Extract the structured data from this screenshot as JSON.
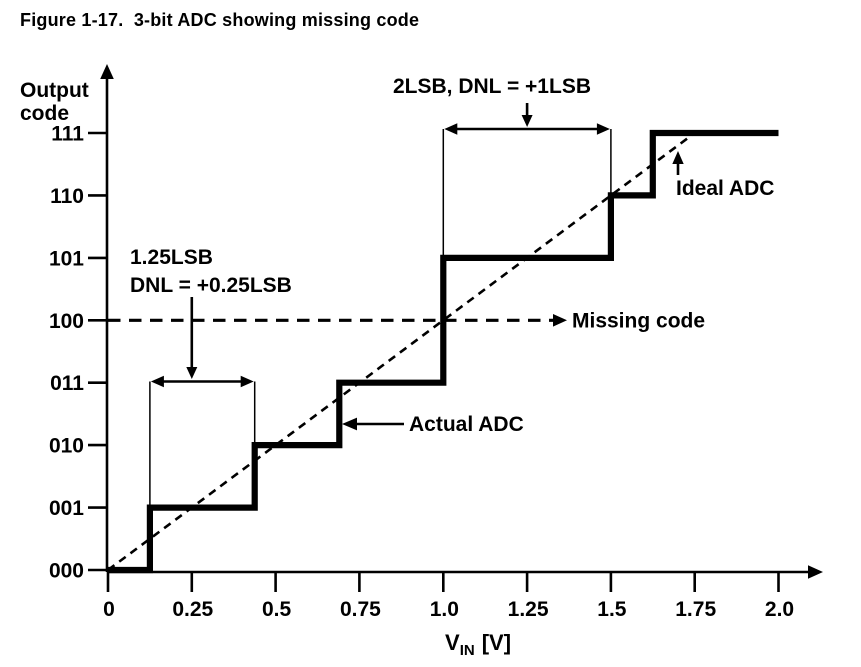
{
  "figure": {
    "caption": "Figure 1-17.  3-bit ADC showing missing code"
  },
  "chart_data": {
    "type": "line",
    "subtype": "adc-transfer-staircase",
    "title": "Figure 1-17. 3-bit ADC showing missing code",
    "xlabel": {
      "text": "VIN [V]",
      "base": "V",
      "subscript": "IN",
      "unit": "[V]"
    },
    "ylabel": {
      "line1": "Output",
      "line2": "code"
    },
    "xlim": [
      0,
      2.0
    ],
    "ylim_codes": [
      0,
      7
    ],
    "grid": false,
    "legend": "none",
    "x_ticks": {
      "values": [
        0,
        0.25,
        0.5,
        0.75,
        1.0,
        1.25,
        1.5,
        1.75,
        2.0
      ],
      "labels": [
        "0",
        "0.25",
        "0.5",
        "0.75",
        "1.0",
        "1.25",
        "1.5",
        "1.75",
        "2.0"
      ]
    },
    "y_ticks": {
      "values": [
        0,
        1,
        2,
        3,
        4,
        5,
        6,
        7
      ],
      "labels": [
        "000",
        "001",
        "010",
        "011",
        "100",
        "101",
        "110",
        "111"
      ]
    },
    "series": [
      {
        "name": "Actual ADC",
        "style": "bold-solid-step",
        "points_v_code": [
          [
            0,
            0
          ],
          [
            0.125,
            0
          ],
          [
            0.125,
            1
          ],
          [
            0.4375,
            1
          ],
          [
            0.4375,
            2
          ],
          [
            0.69,
            2
          ],
          [
            0.69,
            3
          ],
          [
            1.0,
            3
          ],
          [
            1.0,
            5
          ],
          [
            1.5,
            5
          ],
          [
            1.5,
            6
          ],
          [
            1.625,
            6
          ],
          [
            1.625,
            7
          ],
          [
            2.0,
            7
          ]
        ]
      },
      {
        "name": "Ideal ADC",
        "style": "dashed-line",
        "points_v_code": [
          [
            0,
            0
          ],
          [
            1.75,
            7
          ]
        ]
      }
    ],
    "missing_code": {
      "label": "Missing code",
      "code_level": 4,
      "code_label": "100"
    },
    "annotations": [
      {
        "id": "dnl-2lsb",
        "text": "2LSB, DNL = +1LSB",
        "span_volts": [
          1.0,
          1.5
        ],
        "pointer_volt": 1.25,
        "bracket_codes": [
          5,
          6
        ]
      },
      {
        "id": "dnl-125lsb",
        "text_lines": [
          "1.25LSB",
          "DNL = +0.25LSB"
        ],
        "span_volts": [
          0.125,
          0.4375
        ],
        "pointer_volt": 0.25,
        "bracket_codes": [
          1,
          2
        ]
      },
      {
        "id": "ideal-adc",
        "text": "Ideal ADC"
      },
      {
        "id": "actual-adc",
        "text": "Actual ADC"
      }
    ],
    "colors": {
      "ink": "#000000",
      "background": "#ffffff"
    }
  }
}
